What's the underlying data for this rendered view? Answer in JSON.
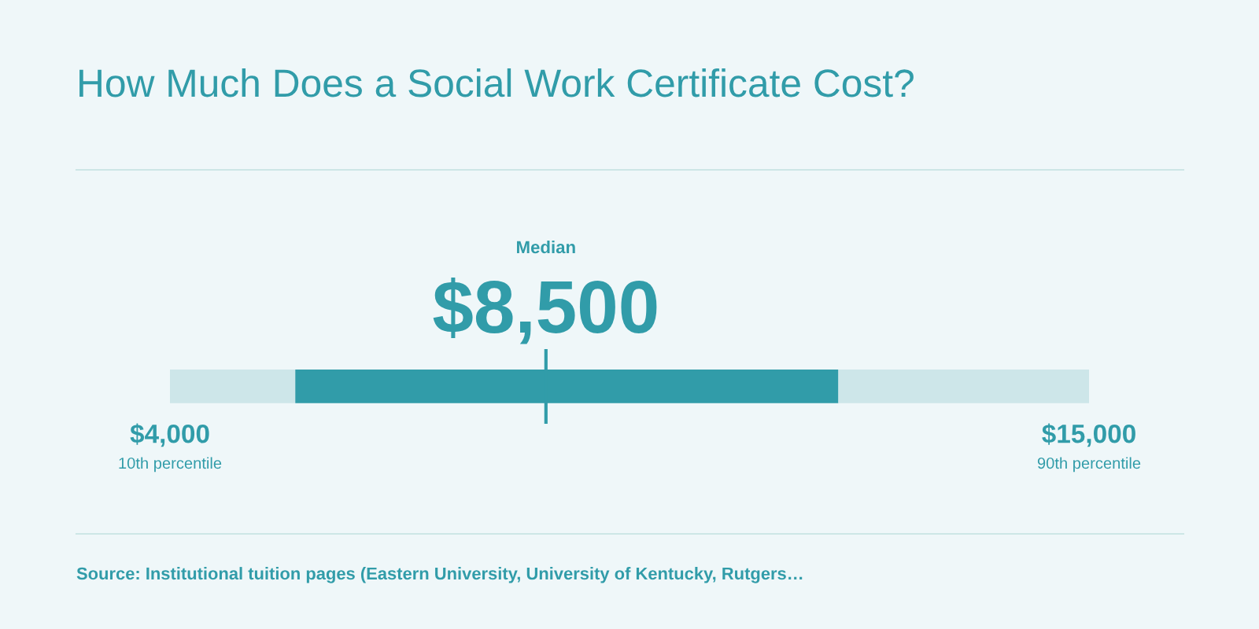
{
  "chart_data": {
    "type": "bar",
    "orientation": "horizontal",
    "title": "How Much Does a Social Work Certificate Cost?",
    "categories": [
      null
    ],
    "series": [
      {
        "color": "#cde6e9",
        "base": [
          4000
        ],
        "values": [
          1500
        ]
      },
      {
        "color": "#319ca9",
        "base": [
          5500
        ],
        "values": [
          6500
        ]
      },
      {
        "color": "#cde6e9",
        "base": [
          12000
        ],
        "values": [
          3000
        ]
      }
    ],
    "xlim": [
      4000,
      15000
    ],
    "xticks": [
      {
        "value": 4000,
        "label": "$4,000"
      },
      {
        "value": 15000,
        "label": "$15,000"
      }
    ],
    "ref_lines": [
      {
        "axis": "x",
        "value": 8500,
        "label": "Median",
        "color": "#319ca9"
      }
    ],
    "annotations": [
      "$8,500",
      "10th percentile",
      "90th percentile",
      "Source: Institutional tuition pages (Eastern University, University of Kentucky, Rutgers…"
    ],
    "grid": false
  }
}
